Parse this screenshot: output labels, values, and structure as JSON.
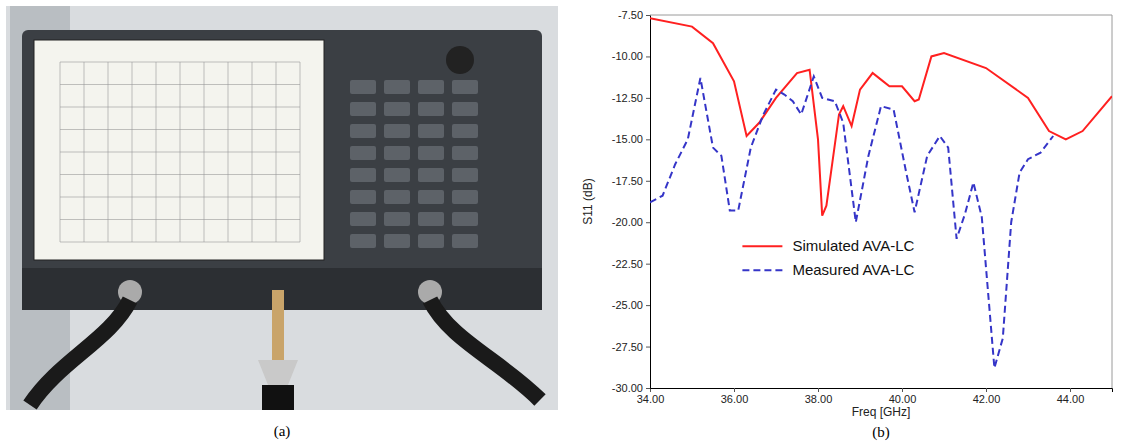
{
  "figure": {
    "panel_a": {
      "caption": "(a)"
    }
  },
  "chart_data": {
    "type": "line",
    "caption": "(b)",
    "x_label": "Freq [GHz]",
    "y_label": "S11 (dB)",
    "xlim": [
      34,
      45
    ],
    "ylim": [
      -30,
      -7.5
    ],
    "xticks": [
      {
        "value": 34,
        "label": "34.00"
      },
      {
        "value": 36,
        "label": "36.00"
      },
      {
        "value": 38,
        "label": "38.00"
      },
      {
        "value": 40,
        "label": "40.00"
      },
      {
        "value": 42,
        "label": "42.00"
      },
      {
        "value": 44,
        "label": "44.00"
      }
    ],
    "yticks": [
      {
        "value": -7.5,
        "label": "-7.50"
      },
      {
        "value": -10,
        "label": "-10.00"
      },
      {
        "value": -12.5,
        "label": "-12.50"
      },
      {
        "value": -15,
        "label": "-15.00"
      },
      {
        "value": -17.5,
        "label": "-17.50"
      },
      {
        "value": -20,
        "label": "-20.00"
      },
      {
        "value": -22.5,
        "label": "-22.50"
      },
      {
        "value": -25,
        "label": "-25.00"
      },
      {
        "value": -27.5,
        "label": "-27.50"
      },
      {
        "value": -30,
        "label": "-30.00"
      }
    ],
    "grid": false,
    "legend": "center",
    "series": [
      {
        "name": "Simulated AVA-LC",
        "color": "#ff2020",
        "line_style": "solid",
        "x": [
          34,
          35,
          35.5,
          36,
          36.3,
          36.6,
          37,
          37.5,
          37.8,
          38,
          38.1,
          38.2,
          38.5,
          38.6,
          38.8,
          39,
          39.3,
          39.5,
          39.7,
          40,
          40.3,
          40.4,
          40.7,
          41,
          42,
          43,
          43.5,
          43.9,
          44.3,
          44.7,
          45
        ],
        "values": [
          -7.7,
          -8.2,
          -9.2,
          -11.5,
          -14.8,
          -14,
          -12.5,
          -11,
          -10.8,
          -15,
          -19.6,
          -19,
          -13.5,
          -13,
          -14.2,
          -12,
          -11,
          -11.4,
          -11.8,
          -11.8,
          -12.7,
          -12.6,
          -10,
          -9.8,
          -10.7,
          -12.5,
          -14.5,
          -15,
          -14.5,
          -13.3,
          -12.4
        ]
      },
      {
        "name": "Measured AVA-LC",
        "color": "#3535c8",
        "line_style": "dashed",
        "x": [
          34,
          34.3,
          34.6,
          34.9,
          35.2,
          35.5,
          35.7,
          35.9,
          36.1,
          36.4,
          36.7,
          37,
          37.2,
          37.4,
          37.6,
          37.9,
          38.1,
          38.4,
          38.6,
          38.9,
          39.2,
          39.5,
          39.8,
          40.1,
          40.3,
          40.6,
          40.9,
          41.1,
          41.3,
          41.5,
          41.7,
          41.9,
          42.2,
          42.4,
          42.6,
          42.8,
          43,
          43.3,
          43.6
        ],
        "values": [
          -18.8,
          -18.4,
          -16.5,
          -15,
          -11.3,
          -15.5,
          -16,
          -19.3,
          -19.3,
          -15.5,
          -13.5,
          -12,
          -12.3,
          -12.7,
          -13.5,
          -11.2,
          -12.5,
          -12.7,
          -14,
          -20,
          -16,
          -13,
          -13.2,
          -17,
          -19.4,
          -16,
          -14.8,
          -15.5,
          -21,
          -19.5,
          -17.6,
          -19.7,
          -28.8,
          -27,
          -20,
          -17,
          -16.2,
          -15.8,
          -14.8
        ]
      }
    ]
  }
}
